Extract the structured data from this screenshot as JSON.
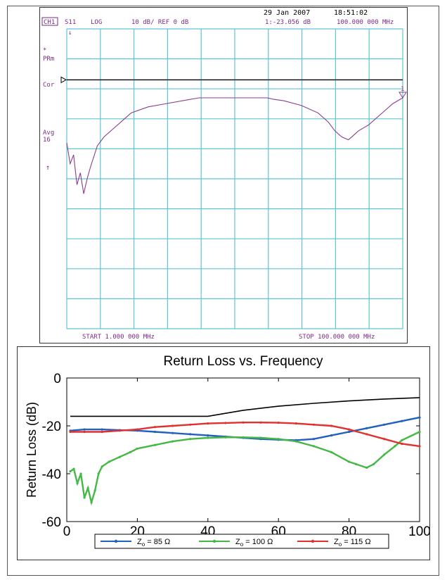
{
  "chart_data": [
    {
      "type": "line",
      "style": "network-analyzer-screen",
      "header": {
        "date": "29 Jan 2007",
        "time": "18:51:02",
        "channel": "CH1",
        "parameter": "S11",
        "format": "LOG",
        "scale": "10 dB/ REF 0 dB",
        "marker_readout": "1:-23.056 dB",
        "marker_freq": "100.000 000 MHz"
      },
      "side_labels": [
        "*",
        "PRm",
        "Cor",
        "Avg",
        "16"
      ],
      "marker_label": "1",
      "start_label": "START  1.000 000 MHz",
      "stop_label": "STOP 100.000 000 MHz",
      "grid": true,
      "grid_color": "#5fc4d6",
      "trace_color": "#8a3c8e",
      "xlim": [
        1,
        100
      ],
      "ylim": [
        -100,
        0
      ],
      "reference_level": 0,
      "series": [
        {
          "x": [
            1,
            2,
            3,
            4,
            5,
            6,
            7,
            8,
            10,
            12,
            15,
            18,
            20,
            25,
            30,
            35,
            40,
            45,
            50,
            55,
            60,
            62,
            65,
            70,
            75,
            78,
            80,
            82,
            84,
            85,
            87,
            90,
            93,
            95,
            97,
            100
          ],
          "y": [
            -38,
            -45,
            -42,
            -52,
            -48,
            -55,
            -50,
            -46,
            -39,
            -36,
            -33,
            -30,
            -28,
            -26,
            -25,
            -24,
            -23,
            -23,
            -23,
            -23,
            -23,
            -23.5,
            -24,
            -25.5,
            -28,
            -31,
            -34,
            -36,
            -37,
            -36,
            -34,
            -32,
            -29,
            -27,
            -25,
            -23
          ]
        }
      ]
    },
    {
      "type": "line",
      "title": "Return Loss vs. Frequency",
      "xlabel": "",
      "ylabel": "Return Loss (dB)",
      "xlim": [
        0,
        100
      ],
      "ylim": [
        -60,
        0
      ],
      "xticks": [
        0,
        20,
        40,
        60,
        80,
        100
      ],
      "yticks": [
        0,
        -20,
        -40,
        -60
      ],
      "grid": false,
      "legend_position": "bottom",
      "series": [
        {
          "name": "Z_o = 85 Ω",
          "legend_prefix": "Z",
          "legend_sub": "o",
          "legend_suffix": " = 85 Ω",
          "color": "#2060c0",
          "x": [
            1,
            5,
            10,
            15,
            20,
            25,
            30,
            35,
            40,
            45,
            50,
            55,
            60,
            65,
            70,
            75,
            80,
            85,
            90,
            95,
            100
          ],
          "y": [
            -22,
            -21.5,
            -21.5,
            -21.8,
            -22,
            -22.5,
            -23,
            -23.5,
            -24,
            -24.5,
            -25,
            -25.5,
            -25.8,
            -26,
            -25.5,
            -24,
            -22.5,
            -21,
            -19.5,
            -18,
            -16.5
          ]
        },
        {
          "name": "Z_o = 100 Ω",
          "legend_prefix": "Z",
          "legend_sub": "o",
          "legend_suffix": " = 100 Ω",
          "color": "#44b844",
          "x": [
            1,
            2,
            3,
            4,
            5,
            6,
            7,
            8,
            9,
            10,
            12,
            15,
            18,
            20,
            25,
            30,
            35,
            40,
            45,
            50,
            55,
            60,
            65,
            70,
            75,
            80,
            82,
            85,
            87,
            90,
            93,
            95,
            100
          ],
          "y": [
            -39,
            -38,
            -44,
            -40,
            -50,
            -46,
            -52,
            -47,
            -40,
            -37,
            -35,
            -33,
            -31,
            -29.5,
            -28,
            -26.5,
            -25.5,
            -25,
            -24.8,
            -24.8,
            -25,
            -25.5,
            -26.5,
            -28.5,
            -31,
            -35,
            -36,
            -37.5,
            -36,
            -32,
            -28.5,
            -26,
            -22.5
          ]
        },
        {
          "name": "Z_o = 115 Ω",
          "legend_prefix": "Z",
          "legend_sub": "o",
          "legend_suffix": " = 115 Ω",
          "color": "#e03030",
          "x": [
            1,
            5,
            10,
            15,
            20,
            25,
            30,
            35,
            40,
            45,
            50,
            55,
            60,
            65,
            70,
            75,
            80,
            85,
            90,
            95,
            100
          ],
          "y": [
            -22.5,
            -22.5,
            -22.5,
            -22,
            -21.5,
            -20.5,
            -20,
            -19.5,
            -19,
            -18.8,
            -18.6,
            -18.6,
            -18.7,
            -19,
            -19.5,
            -20,
            -21.5,
            -23.5,
            -25.5,
            -27.5,
            -28.5
          ]
        },
        {
          "name": "",
          "color": "#000000",
          "x": [
            1,
            40,
            50,
            60,
            70,
            80,
            90,
            100
          ],
          "y": [
            -16,
            -16,
            -13.5,
            -11.8,
            -10.6,
            -9.6,
            -8.8,
            -8.2
          ]
        }
      ]
    }
  ]
}
